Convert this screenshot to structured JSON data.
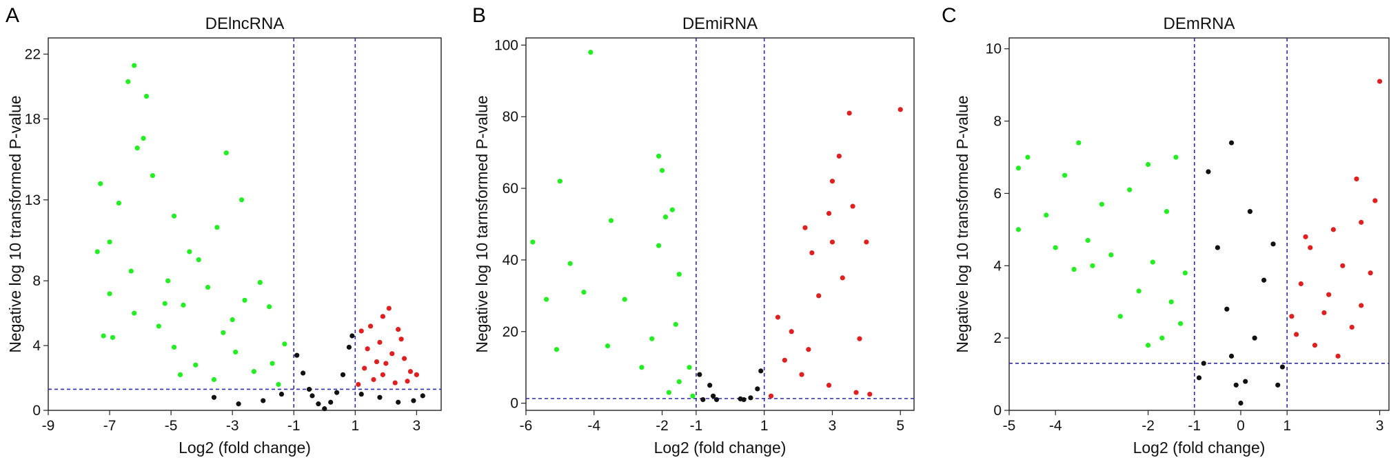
{
  "colors": {
    "down": "#22ee22",
    "up": "#e02020",
    "ns": "#111111",
    "threshold": "#2b2bb0"
  },
  "chart_data": [
    {
      "type": "scatter",
      "panel": "A",
      "title": "DElncRNA",
      "xlabel": "Log2 (fold change)",
      "ylabel": "Negative log 10 transformed P-value",
      "xlim": [
        -9,
        3.8
      ],
      "ylim": [
        0,
        23
      ],
      "xticks": [
        -9,
        -7,
        -5,
        -3,
        -1,
        1,
        3
      ],
      "yticks": [
        0,
        4,
        8,
        13,
        18,
        22
      ],
      "thresholds": {
        "x": [
          -1,
          1
        ],
        "y": 1.3
      },
      "grid": false,
      "points": {
        "up": [
          [
            1.2,
            4.9
          ],
          [
            1.5,
            5.2
          ],
          [
            1.9,
            5.8
          ],
          [
            2.1,
            6.3
          ],
          [
            2.4,
            5.0
          ],
          [
            2.6,
            3.2
          ],
          [
            1.4,
            3.8
          ],
          [
            1.8,
            4.2
          ],
          [
            2.2,
            3.5
          ],
          [
            2.8,
            2.4
          ],
          [
            1.3,
            2.6
          ],
          [
            1.6,
            1.9
          ],
          [
            2.0,
            2.9
          ],
          [
            2.3,
            1.7
          ],
          [
            1.1,
            1.6
          ],
          [
            2.5,
            4.4
          ],
          [
            1.7,
            3.0
          ],
          [
            2.7,
            1.8
          ],
          [
            3.0,
            2.2
          ],
          [
            1.9,
            2.2
          ]
        ],
        "down": [
          [
            -6.2,
            21.3
          ],
          [
            -6.4,
            20.3
          ],
          [
            -5.8,
            19.4
          ],
          [
            -5.9,
            16.8
          ],
          [
            -6.1,
            16.2
          ],
          [
            -7.3,
            14.0
          ],
          [
            -6.7,
            12.8
          ],
          [
            -3.2,
            15.9
          ],
          [
            -4.9,
            12.0
          ],
          [
            -2.7,
            13.0
          ],
          [
            -5.6,
            14.5
          ],
          [
            -7.0,
            10.4
          ],
          [
            -7.4,
            9.8
          ],
          [
            -6.3,
            8.6
          ],
          [
            -6.2,
            6.0
          ],
          [
            -7.0,
            7.2
          ],
          [
            -7.2,
            4.6
          ],
          [
            -6.9,
            4.5
          ],
          [
            -4.4,
            9.8
          ],
          [
            -4.1,
            9.3
          ],
          [
            -3.5,
            11.3
          ],
          [
            -5.1,
            8.0
          ],
          [
            -3.8,
            7.6
          ],
          [
            -4.6,
            6.5
          ],
          [
            -2.6,
            6.8
          ],
          [
            -2.1,
            7.9
          ],
          [
            -1.8,
            6.4
          ],
          [
            -5.4,
            5.2
          ],
          [
            -4.9,
            3.9
          ],
          [
            -3.3,
            4.8
          ],
          [
            -2.9,
            3.6
          ],
          [
            -4.2,
            2.8
          ],
          [
            -1.7,
            2.9
          ],
          [
            -1.3,
            4.1
          ],
          [
            -3.6,
            1.9
          ],
          [
            -2.3,
            2.4
          ],
          [
            -1.5,
            1.6
          ],
          [
            -4.7,
            2.2
          ],
          [
            -3.0,
            5.6
          ],
          [
            -5.2,
            6.6
          ]
        ],
        "ns": [
          [
            -0.9,
            3.4
          ],
          [
            -0.7,
            2.3
          ],
          [
            -0.5,
            1.3
          ],
          [
            -0.4,
            0.9
          ],
          [
            -0.2,
            0.4
          ],
          [
            0.0,
            0.1
          ],
          [
            0.2,
            0.5
          ],
          [
            0.4,
            1.1
          ],
          [
            0.6,
            2.2
          ],
          [
            0.8,
            3.9
          ],
          [
            0.9,
            4.6
          ],
          [
            -1.4,
            1.0
          ],
          [
            -2.0,
            0.6
          ],
          [
            -2.8,
            0.4
          ],
          [
            1.2,
            1.0
          ],
          [
            1.8,
            0.8
          ],
          [
            2.4,
            0.5
          ],
          [
            2.9,
            0.6
          ],
          [
            -3.6,
            0.8
          ],
          [
            3.2,
            0.9
          ]
        ]
      }
    },
    {
      "type": "scatter",
      "panel": "B",
      "title": "DEmiRNA",
      "xlabel": "Log2 (fold change)",
      "ylabel": "Negative log 10 tarnsformed P-value",
      "xlim": [
        -6,
        5.4
      ],
      "ylim": [
        -2,
        102
      ],
      "xticks": [
        -6,
        -4,
        -2,
        -1,
        1,
        3,
        5
      ],
      "yticks": [
        0,
        20,
        40,
        60,
        80,
        100
      ],
      "thresholds": {
        "x": [
          -1,
          1
        ],
        "y": 1.3
      },
      "grid": false,
      "points": {
        "up": [
          [
            5.0,
            82.0
          ],
          [
            3.5,
            81.0
          ],
          [
            3.2,
            69.0
          ],
          [
            3.0,
            62.0
          ],
          [
            3.6,
            55.0
          ],
          [
            2.9,
            53.0
          ],
          [
            2.2,
            49.0
          ],
          [
            4.0,
            45.0
          ],
          [
            3.0,
            45.0
          ],
          [
            2.4,
            42.0
          ],
          [
            1.4,
            24.0
          ],
          [
            1.8,
            20.0
          ],
          [
            2.6,
            30.0
          ],
          [
            3.3,
            35.0
          ],
          [
            1.6,
            12.0
          ],
          [
            2.1,
            8.0
          ],
          [
            2.9,
            5.0
          ],
          [
            3.7,
            3.0
          ],
          [
            4.1,
            2.5
          ],
          [
            1.2,
            2.0
          ],
          [
            2.3,
            15.0
          ],
          [
            3.8,
            18.0
          ]
        ],
        "down": [
          [
            -4.1,
            98.0
          ],
          [
            -5.0,
            62.0
          ],
          [
            -2.1,
            69.0
          ],
          [
            -2.0,
            65.0
          ],
          [
            -3.5,
            51.0
          ],
          [
            -1.7,
            54.0
          ],
          [
            -1.9,
            52.0
          ],
          [
            -5.8,
            45.0
          ],
          [
            -2.1,
            44.0
          ],
          [
            -4.7,
            39.0
          ],
          [
            -1.5,
            36.0
          ],
          [
            -4.3,
            31.0
          ],
          [
            -5.4,
            29.0
          ],
          [
            -3.1,
            29.0
          ],
          [
            -1.6,
            22.0
          ],
          [
            -2.3,
            18.0
          ],
          [
            -3.6,
            16.0
          ],
          [
            -5.1,
            15.0
          ],
          [
            -1.2,
            10.0
          ],
          [
            -1.5,
            6.0
          ],
          [
            -1.8,
            3.0
          ],
          [
            -1.1,
            2.0
          ],
          [
            -2.6,
            10.0
          ]
        ],
        "ns": [
          [
            -0.9,
            8.0
          ],
          [
            -0.6,
            5.0
          ],
          [
            -0.8,
            1.0
          ],
          [
            -0.5,
            2.0
          ],
          [
            -0.4,
            1.0
          ],
          [
            0.6,
            1.5
          ],
          [
            0.8,
            4.0
          ],
          [
            0.9,
            9.0
          ],
          [
            0.4,
            1.0
          ],
          [
            0.3,
            1.2
          ]
        ]
      }
    },
    {
      "type": "scatter",
      "panel": "C",
      "title": "DEmRNA",
      "xlabel": "Log2 (fold change)",
      "ylabel": "Negative log 10 transformed P-value",
      "xlim": [
        -5,
        3.2
      ],
      "ylim": [
        0,
        10.3
      ],
      "xticks": [
        -5,
        -4,
        -2,
        -1,
        0,
        1,
        3
      ],
      "yticks": [
        0,
        2,
        4,
        6,
        8,
        10
      ],
      "thresholds": {
        "x": [
          -1,
          1
        ],
        "y": 1.3
      },
      "grid": false,
      "points": {
        "up": [
          [
            3.0,
            9.1
          ],
          [
            2.5,
            6.4
          ],
          [
            2.9,
            5.8
          ],
          [
            2.6,
            5.2
          ],
          [
            2.0,
            5.0
          ],
          [
            1.5,
            4.5
          ],
          [
            2.2,
            4.0
          ],
          [
            1.3,
            3.5
          ],
          [
            2.8,
            3.8
          ],
          [
            1.8,
            2.7
          ],
          [
            1.2,
            2.1
          ],
          [
            2.4,
            2.3
          ],
          [
            1.6,
            1.8
          ],
          [
            1.1,
            2.6
          ],
          [
            2.1,
            1.5
          ],
          [
            2.6,
            2.9
          ],
          [
            1.4,
            4.8
          ],
          [
            1.9,
            3.2
          ]
        ],
        "down": [
          [
            -4.6,
            7.0
          ],
          [
            -3.5,
            7.4
          ],
          [
            -4.8,
            6.7
          ],
          [
            -3.8,
            6.5
          ],
          [
            -2.0,
            6.8
          ],
          [
            -1.4,
            7.0
          ],
          [
            -4.2,
            5.4
          ],
          [
            -3.0,
            5.7
          ],
          [
            -2.4,
            6.1
          ],
          [
            -1.6,
            5.5
          ],
          [
            -3.3,
            4.7
          ],
          [
            -2.8,
            4.3
          ],
          [
            -1.9,
            4.1
          ],
          [
            -3.6,
            3.9
          ],
          [
            -2.2,
            3.3
          ],
          [
            -1.5,
            3.0
          ],
          [
            -2.6,
            2.6
          ],
          [
            -1.7,
            2.0
          ],
          [
            -4.8,
            5.0
          ],
          [
            -4.0,
            4.5
          ],
          [
            -1.2,
            3.8
          ],
          [
            -2.0,
            1.8
          ],
          [
            -3.2,
            4.0
          ],
          [
            -1.3,
            2.4
          ]
        ],
        "ns": [
          [
            -0.7,
            6.6
          ],
          [
            -0.2,
            7.4
          ],
          [
            0.2,
            5.5
          ],
          [
            -0.5,
            4.5
          ],
          [
            -0.3,
            2.8
          ],
          [
            -0.2,
            1.5
          ],
          [
            -0.1,
            0.7
          ],
          [
            0.0,
            0.2
          ],
          [
            0.1,
            0.8
          ],
          [
            0.3,
            2.0
          ],
          [
            0.5,
            3.6
          ],
          [
            0.7,
            4.6
          ],
          [
            -0.8,
            1.3
          ],
          [
            -0.9,
            0.9
          ],
          [
            0.9,
            1.2
          ],
          [
            0.8,
            0.7
          ]
        ]
      }
    }
  ]
}
